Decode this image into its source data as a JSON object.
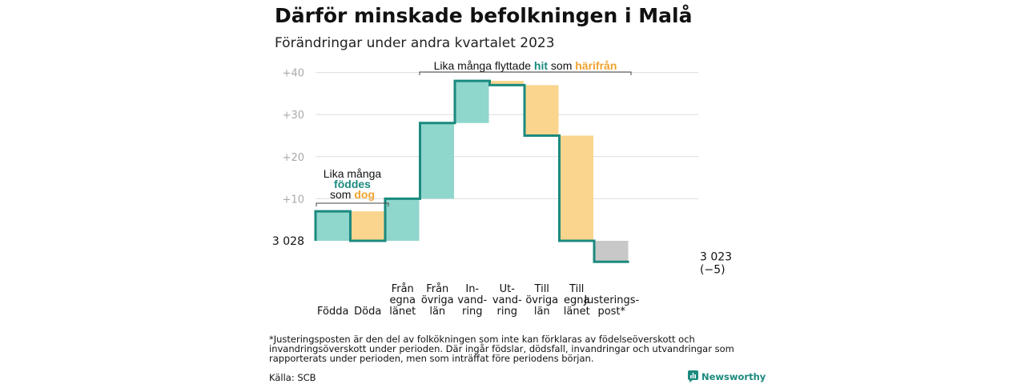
{
  "title": "Därför minskade befolkningen i Malå",
  "subtitle": "Förändringar under andra kvartalet 2023",
  "colors": {
    "step_line": "#1b8a7e",
    "inflow": "#8fd6cd",
    "outflow": "#fad58e",
    "adjustment": "#c8c8c8",
    "highlight_teal": "#1b8a7e",
    "highlight_orange": "#f0a330",
    "grid": "#dddddd",
    "tick_label": "#aaaaaa"
  },
  "chart_data": {
    "type": "waterfall",
    "title": "Därför minskade befolkningen i Malå",
    "subtitle": "Förändringar under andra kvartalet 2023",
    "baseline": 3028,
    "baseline_label": "3 028",
    "end_label": "3 023",
    "end_change_label": "(−5)",
    "ylim": [
      -5,
      40
    ],
    "yticks": [
      10,
      20,
      30,
      40
    ],
    "ytick_labels": [
      "+10",
      "+20",
      "+30",
      "+40"
    ],
    "grid": true,
    "steps": [
      {
        "category": "Födda",
        "label": "Födda",
        "change": 7,
        "kind": "inflow"
      },
      {
        "category": "Döda",
        "label": "Döda",
        "change": -7,
        "kind": "outflow"
      },
      {
        "category": "Från egna länet",
        "label": "Från\negna\nlänet",
        "change": 10,
        "kind": "inflow"
      },
      {
        "category": "Från övriga län",
        "label": "Från\növriga\nlän",
        "change": 18,
        "kind": "inflow"
      },
      {
        "category": "In-vandring",
        "label": "In-\nvand-\nring",
        "change": 10,
        "kind": "inflow"
      },
      {
        "category": "Ut-vandring",
        "label": "Ut-\nvand-\nring",
        "change": -1,
        "kind": "outflow"
      },
      {
        "category": "Till övriga län",
        "label": "Till\növriga\nlän",
        "change": -12,
        "kind": "outflow"
      },
      {
        "category": "Till egna länet",
        "label": "Till\negna\nlänet",
        "change": -25,
        "kind": "outflow"
      },
      {
        "category": "Justeringspost*",
        "label": "Justerings-\npost*",
        "change": -5,
        "kind": "adjustment"
      }
    ],
    "annotations": {
      "births": {
        "line1": "Lika många",
        "highlight1": "föddes",
        "prefix2": "som",
        "highlight2": "dog"
      },
      "migration": {
        "prefix": "Lika många flyttade",
        "highlight1": "hit",
        "middle": "som",
        "highlight2": "härifrån"
      }
    }
  },
  "footnote": "*Justeringsposten är den del av folkökningen som inte kan förklaras av födelseöverskott och invandringsöverskott under perioden. Där ingår födslar, dödsfall, invandringar och utvandringar som rapporterats under perioden, men som inträffat före periodens början.",
  "source": "Källa: SCB",
  "logo": {
    "text": "Newsworthy",
    "icon": "bar-chart-logo-icon"
  }
}
